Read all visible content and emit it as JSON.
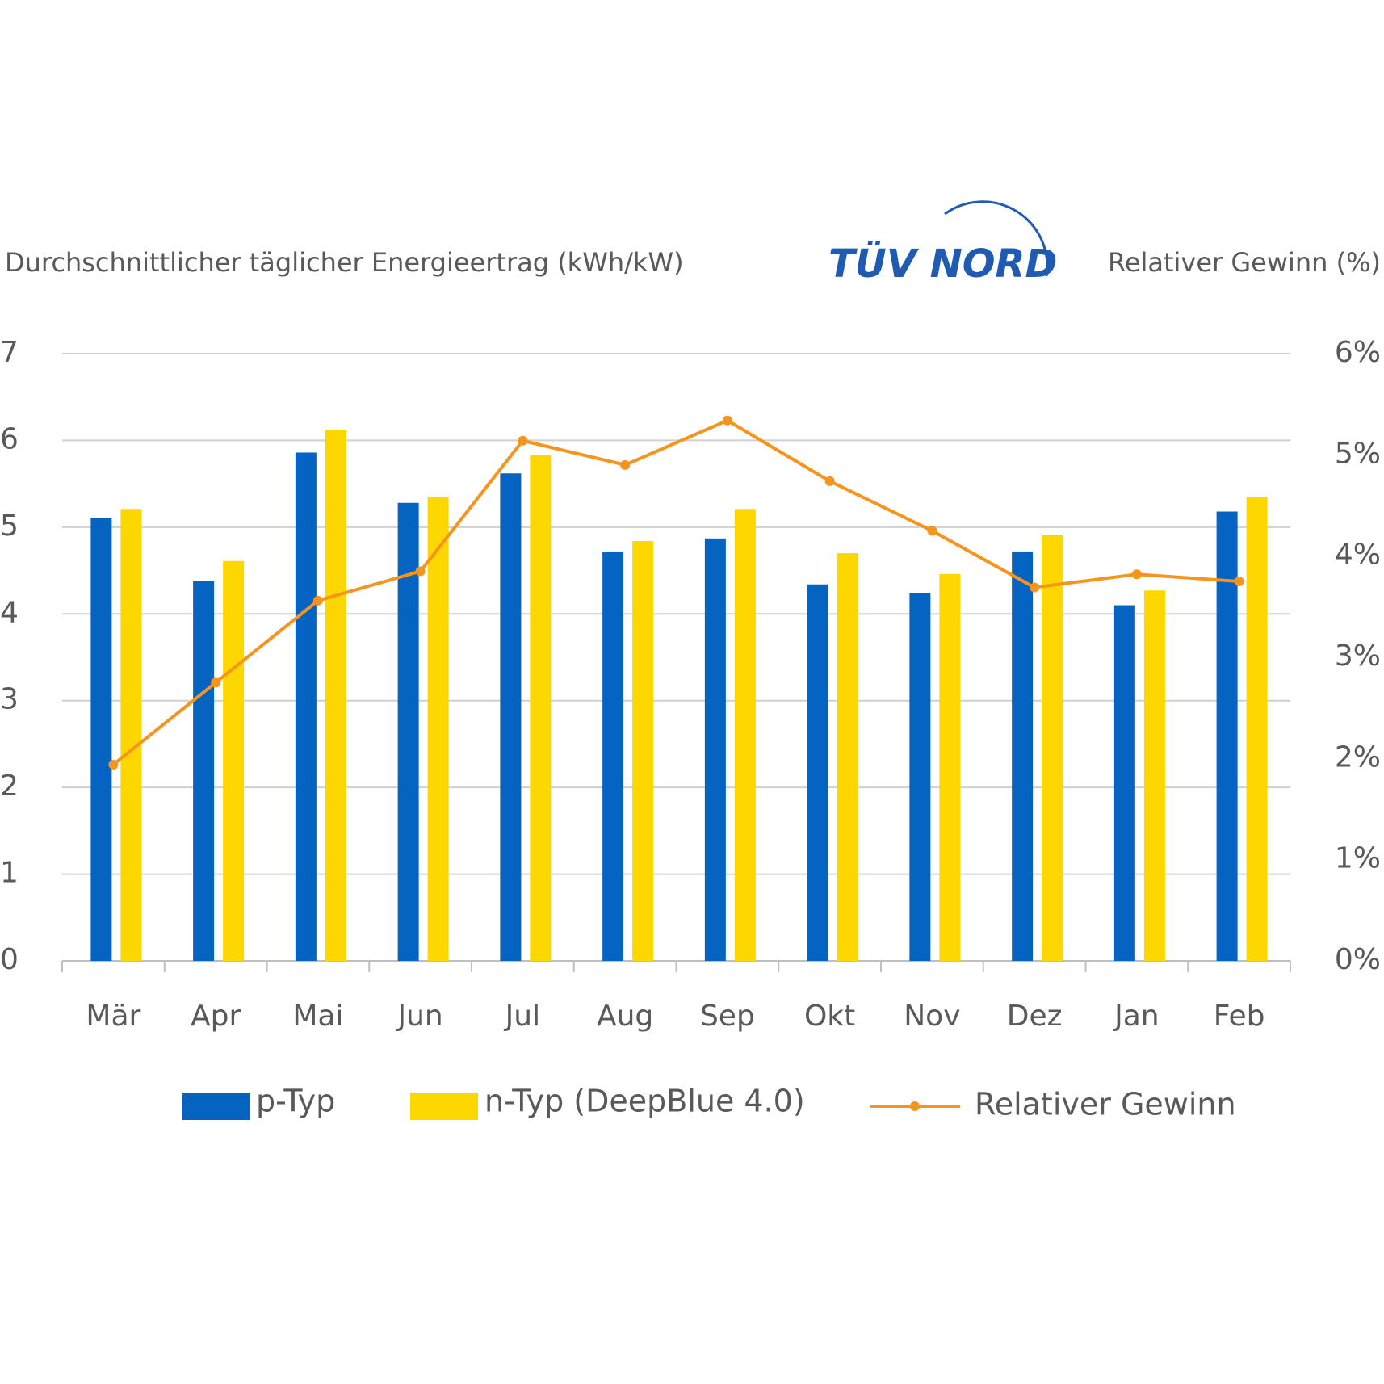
{
  "chart_data": {
    "type": "bar",
    "logo": "TÜV NORD",
    "y_label": "Durchschnittlicher täglicher Energieertrag (kWh/kW)",
    "y2_label": "Relativer Gewinn (%)",
    "categories": [
      "Mär",
      "Apr",
      "Mai",
      "Jun",
      "Jul",
      "Aug",
      "Sep",
      "Okt",
      "Nov",
      "Dez",
      "Jan",
      "Feb"
    ],
    "series": [
      {
        "name": "p-Typ",
        "color": "#0563c1",
        "values": [
          5.11,
          4.38,
          5.86,
          5.28,
          5.62,
          4.72,
          4.87,
          4.34,
          4.24,
          4.72,
          4.1,
          5.18
        ]
      },
      {
        "name": "n-Typ (DeepBlue 4.0)",
        "color": "#ffd700",
        "values": [
          5.21,
          4.61,
          6.12,
          5.35,
          5.83,
          4.84,
          5.21,
          4.7,
          4.46,
          4.91,
          4.27,
          5.35
        ]
      },
      {
        "name": "Relativer Gewinn",
        "color": "#f7941d",
        "type": "line",
        "axis": "y2",
        "values": [
          1.94,
          2.75,
          3.56,
          3.85,
          5.14,
          4.9,
          5.34,
          4.74,
          4.25,
          3.69,
          3.82,
          3.75
        ]
      }
    ],
    "ylim": [
      0,
      7
    ],
    "yticks": [
      0,
      1,
      2,
      3,
      4,
      5,
      6,
      7
    ],
    "y2lim": [
      0,
      6
    ],
    "y2ticks": [
      {
        "value": 0,
        "label": "0%"
      },
      {
        "value": 1,
        "label": "1%"
      },
      {
        "value": 2,
        "label": "2%"
      },
      {
        "value": 3,
        "label": "3%"
      },
      {
        "value": 4,
        "label": "4%"
      },
      {
        "value": 5,
        "label": "5%"
      },
      {
        "value": 6,
        "label": "6%"
      }
    ],
    "grid": true
  }
}
